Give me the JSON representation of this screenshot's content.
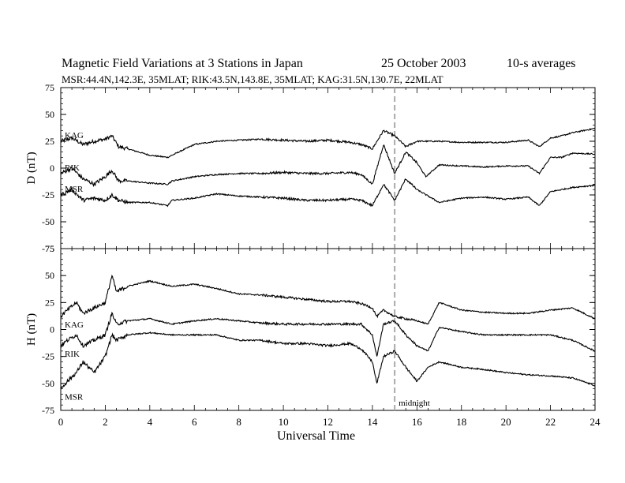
{
  "header": {
    "title": "Magnetic Field Variations at 3 Stations in Japan",
    "date": "25 October 2003",
    "averaging": "10-s averages",
    "stations": "MSR:44.4N,142.3E, 35MLAT;  RIK:43.5N,143.8E, 35MLAT;  KAG:31.5N,130.7E, 22MLAT"
  },
  "chart_data": [
    {
      "type": "line",
      "panel": "top",
      "ylabel": "D (nT)",
      "ylim": [
        -75,
        75
      ],
      "yticks": [
        75,
        50,
        25,
        0,
        -25,
        -50,
        -75
      ],
      "xlim": [
        0,
        24
      ],
      "marker_line": {
        "x": 15,
        "style": "dashed"
      },
      "series": [
        {
          "name": "KAG",
          "x": [
            0,
            0.5,
            1,
            1.5,
            2,
            2.3,
            2.6,
            3,
            4,
            4.8,
            5,
            6,
            7,
            8,
            9,
            10,
            11,
            12,
            13,
            13.5,
            14,
            14.5,
            15,
            15.5,
            16,
            17,
            18,
            19,
            20,
            21,
            21.5,
            22,
            22.5,
            23,
            24
          ],
          "y": [
            25,
            28,
            22,
            25,
            27,
            30,
            20,
            18,
            12,
            10,
            12,
            22,
            25,
            26,
            27,
            26,
            25,
            26,
            24,
            22,
            18,
            35,
            30,
            20,
            25,
            25,
            24,
            24,
            24,
            26,
            20,
            28,
            30,
            33,
            37
          ]
        },
        {
          "name": "RIK",
          "x": [
            0,
            0.5,
            1,
            1.5,
            2,
            2.3,
            2.6,
            3,
            4,
            4.8,
            5,
            6,
            7,
            8,
            9,
            10,
            11,
            12,
            13,
            13.5,
            14,
            14.5,
            15,
            15.5,
            16,
            16.4,
            17,
            18,
            19,
            20,
            21,
            21.5,
            22,
            22.5,
            23,
            24
          ],
          "y": [
            -5,
            0,
            -10,
            -15,
            -8,
            -2,
            -12,
            -12,
            -14,
            -15,
            -12,
            -8,
            -6,
            -5,
            -5,
            -4,
            -5,
            -5,
            -4,
            -6,
            -15,
            22,
            -5,
            15,
            5,
            -8,
            3,
            2,
            1,
            2,
            2,
            -5,
            10,
            10,
            14,
            13
          ]
        },
        {
          "name": "MSR",
          "x": [
            0,
            0.5,
            1,
            1.5,
            2,
            2.3,
            2.6,
            3,
            4,
            4.8,
            5,
            6,
            7,
            8,
            9,
            10,
            11,
            12,
            13,
            13.5,
            14,
            14.5,
            15,
            15.5,
            16,
            17,
            18,
            19,
            20,
            21,
            21.5,
            22,
            22.5,
            23,
            24
          ],
          "y": [
            -25,
            -20,
            -30,
            -28,
            -30,
            -25,
            -30,
            -32,
            -32,
            -35,
            -30,
            -28,
            -24,
            -26,
            -27,
            -28,
            -30,
            -30,
            -29,
            -30,
            -35,
            -15,
            -30,
            -10,
            -20,
            -32,
            -28,
            -27,
            -29,
            -27,
            -35,
            -22,
            -20,
            -18,
            -16
          ]
        }
      ]
    },
    {
      "type": "line",
      "panel": "bottom",
      "ylabel": "H (nT)",
      "ylim": [
        -75,
        75
      ],
      "yticks": [
        75,
        50,
        25,
        0,
        -25,
        -50,
        -75
      ],
      "xlim": [
        0,
        24
      ],
      "xlabel": "Universal Time",
      "xticks": [
        0,
        2,
        4,
        6,
        8,
        10,
        12,
        14,
        16,
        18,
        20,
        22,
        24
      ],
      "marker_line": {
        "x": 15,
        "style": "dashed"
      },
      "annotation": "midnight",
      "series": [
        {
          "name": "KAG",
          "x": [
            0,
            0.3,
            0.7,
            1,
            1.5,
            2,
            2.3,
            2.5,
            3,
            4,
            5,
            6,
            7,
            8,
            9,
            10,
            11,
            12,
            13,
            13.5,
            14,
            14.2,
            14.5,
            15,
            15.5,
            16,
            16.5,
            17,
            18,
            19,
            20,
            21,
            22,
            23,
            24
          ],
          "y": [
            12,
            18,
            25,
            15,
            20,
            25,
            50,
            35,
            40,
            45,
            40,
            42,
            38,
            33,
            32,
            30,
            28,
            26,
            26,
            24,
            20,
            12,
            18,
            12,
            10,
            8,
            5,
            25,
            18,
            16,
            15,
            15,
            18,
            20,
            10
          ]
        },
        {
          "name": "RIK",
          "x": [
            0,
            0.3,
            0.7,
            1,
            1.5,
            2,
            2.3,
            2.5,
            3,
            4,
            5,
            6,
            7,
            8,
            9,
            10,
            11,
            12,
            13,
            13.5,
            14,
            14.2,
            14.5,
            15,
            15.5,
            16,
            16.5,
            17,
            18,
            19,
            20,
            21,
            22,
            23,
            24
          ],
          "y": [
            -15,
            -10,
            -5,
            -15,
            -10,
            -5,
            15,
            5,
            8,
            10,
            5,
            8,
            10,
            8,
            6,
            5,
            5,
            5,
            5,
            5,
            -5,
            -25,
            5,
            8,
            -5,
            -15,
            -20,
            2,
            -2,
            -5,
            -5,
            -5,
            -5,
            -10,
            -20
          ]
        },
        {
          "name": "MSR",
          "x": [
            0,
            0.3,
            0.7,
            1,
            1.5,
            2,
            2.3,
            2.5,
            3,
            4,
            5,
            6,
            7,
            8,
            9,
            10,
            11,
            12,
            13,
            13.5,
            14,
            14.2,
            14.5,
            15,
            15.5,
            16,
            16.5,
            17,
            18,
            19,
            20,
            21,
            22,
            23,
            24
          ],
          "y": [
            -55,
            -48,
            -40,
            -30,
            -40,
            -25,
            -5,
            -10,
            -5,
            -3,
            -5,
            -5,
            -5,
            -10,
            -10,
            -13,
            -13,
            -15,
            -13,
            -18,
            -30,
            -50,
            -25,
            -20,
            -35,
            -48,
            -35,
            -30,
            -35,
            -37,
            -40,
            -42,
            -43,
            -45,
            -52
          ]
        }
      ]
    }
  ]
}
